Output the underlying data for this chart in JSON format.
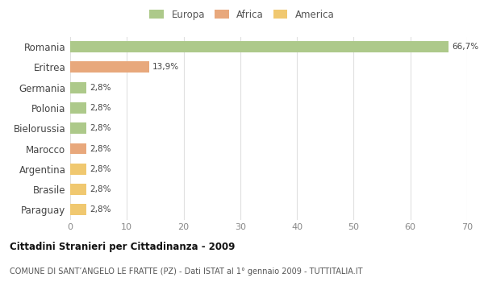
{
  "categories": [
    "Romania",
    "Eritrea",
    "Germania",
    "Polonia",
    "Bielorussia",
    "Marocco",
    "Argentina",
    "Brasile",
    "Paraguay"
  ],
  "values": [
    66.7,
    13.9,
    2.8,
    2.8,
    2.8,
    2.8,
    2.8,
    2.8,
    2.8
  ],
  "labels": [
    "66,7%",
    "13,9%",
    "2,8%",
    "2,8%",
    "2,8%",
    "2,8%",
    "2,8%",
    "2,8%",
    "2,8%"
  ],
  "bar_colors": [
    "#adc98a",
    "#e8a87c",
    "#adc98a",
    "#adc98a",
    "#adc98a",
    "#e8a87c",
    "#f0c870",
    "#f0c870",
    "#f0c870"
  ],
  "legend_labels": [
    "Europa",
    "Africa",
    "America"
  ],
  "legend_colors": [
    "#adc98a",
    "#e8a87c",
    "#f0c870"
  ],
  "xlim": [
    0,
    70
  ],
  "xticks": [
    0,
    10,
    20,
    30,
    40,
    50,
    60,
    70
  ],
  "title": "Cittadini Stranieri per Cittadinanza - 2009",
  "subtitle": "COMUNE DI SANT’ANGELO LE FRATTE (PZ) - Dati ISTAT al 1° gennaio 2009 - TUTTITALIA.IT",
  "background_color": "#ffffff",
  "bar_height": 0.55,
  "grid_color": "#e0e0e0"
}
